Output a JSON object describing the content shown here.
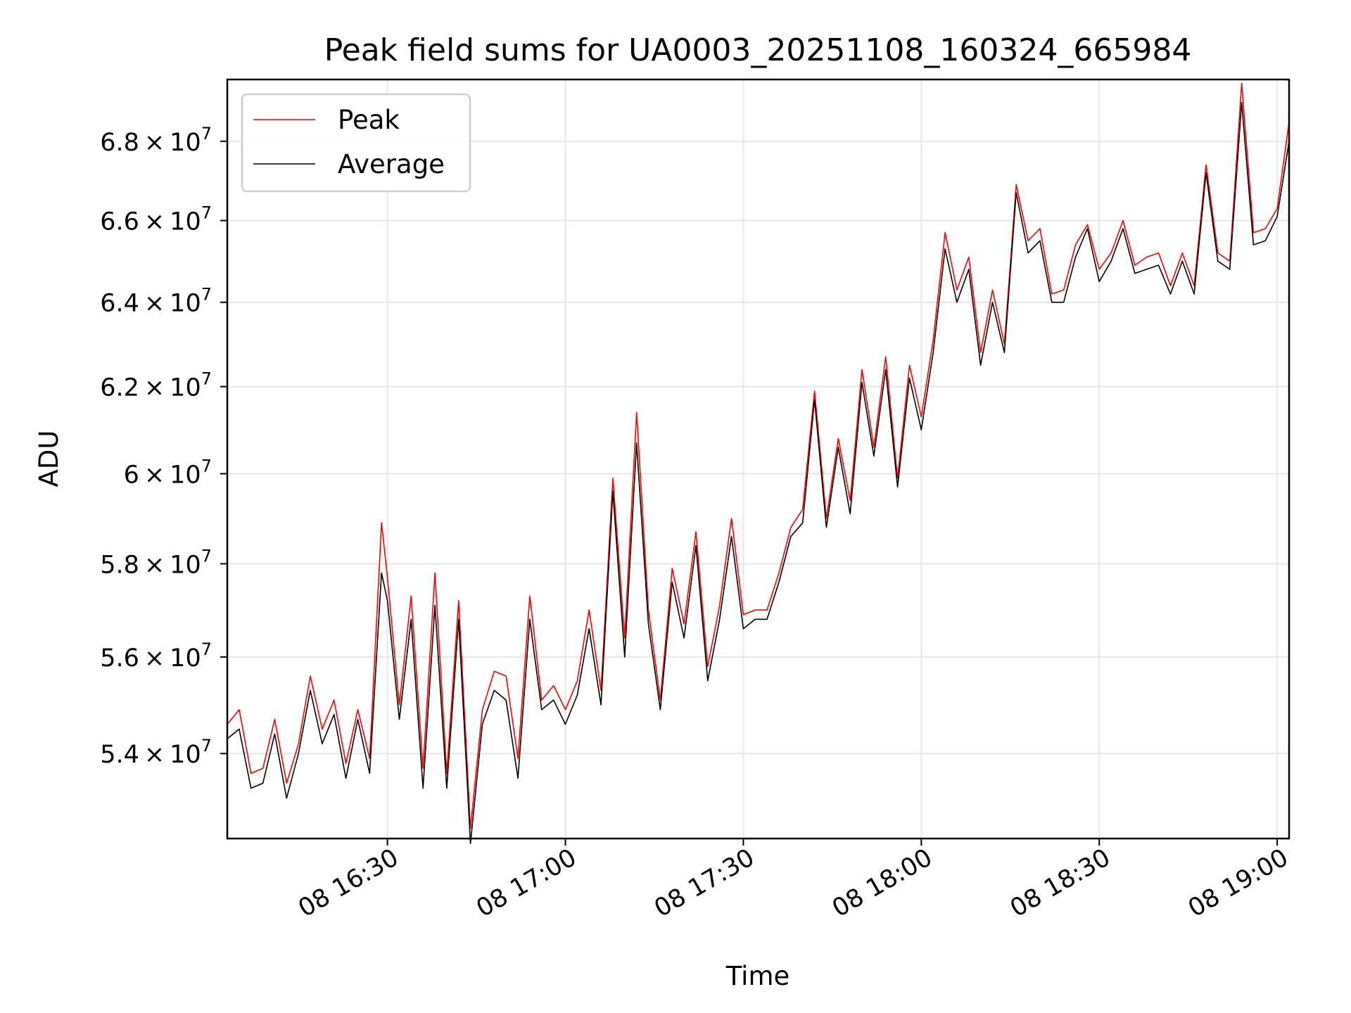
{
  "chart_data": {
    "type": "line",
    "title": "Peak field sums for UA0003_20251108_160324_665984",
    "xlabel": "Time",
    "ylabel": "ADU",
    "xlim": [
      "08 16:03",
      "08 19:02"
    ],
    "ylim": [
      52300000,
      69600000
    ],
    "ylog": true,
    "grid": true,
    "legend_position": "upper left",
    "x_ticks": [
      "08 16:30",
      "08 17:00",
      "08 17:30",
      "08 18:00",
      "08 18:30",
      "08 19:00"
    ],
    "y_ticks": [
      {
        "value": 54000000,
        "mantissa": "5.4",
        "exp": "7"
      },
      {
        "value": 56000000,
        "mantissa": "5.6",
        "exp": "7"
      },
      {
        "value": 58000000,
        "mantissa": "5.8",
        "exp": "7"
      },
      {
        "value": 60000000,
        "mantissa": "6",
        "exp": "7"
      },
      {
        "value": 62000000,
        "mantissa": "6.2",
        "exp": "7"
      },
      {
        "value": 64000000,
        "mantissa": "6.4",
        "exp": "7"
      },
      {
        "value": 66000000,
        "mantissa": "6.6",
        "exp": "7"
      },
      {
        "value": 68000000,
        "mantissa": "6.8",
        "exp": "7"
      }
    ],
    "x": [
      "16:03",
      "16:05",
      "16:07",
      "16:09",
      "16:11",
      "16:13",
      "16:15",
      "16:17",
      "16:19",
      "16:21",
      "16:23",
      "16:25",
      "16:27",
      "16:29",
      "16:30",
      "16:32",
      "16:34",
      "16:36",
      "16:38",
      "16:40",
      "16:42",
      "16:44",
      "16:46",
      "16:48",
      "16:50",
      "16:52",
      "16:54",
      "16:56",
      "16:58",
      "17:00",
      "17:02",
      "17:04",
      "17:06",
      "17:08",
      "17:10",
      "17:12",
      "17:14",
      "17:16",
      "17:18",
      "17:20",
      "17:22",
      "17:24",
      "17:26",
      "17:28",
      "17:30",
      "17:32",
      "17:34",
      "17:36",
      "17:38",
      "17:40",
      "17:42",
      "17:44",
      "17:46",
      "17:48",
      "17:50",
      "17:52",
      "17:54",
      "17:56",
      "17:58",
      "18:00",
      "18:02",
      "18:04",
      "18:06",
      "18:08",
      "18:10",
      "18:12",
      "18:14",
      "18:16",
      "18:18",
      "18:20",
      "18:22",
      "18:24",
      "18:26",
      "18:28",
      "18:30",
      "18:32",
      "18:34",
      "18:36",
      "18:38",
      "18:40",
      "18:42",
      "18:44",
      "18:46",
      "18:48",
      "18:50",
      "18:52",
      "18:54",
      "18:56",
      "18:58",
      "19:00",
      "19:02"
    ],
    "series": [
      {
        "name": "Peak",
        "color": "#ff0000",
        "values": [
          54600000,
          54900000,
          53600000,
          53700000,
          54700000,
          53400000,
          54200000,
          55600000,
          54500000,
          55100000,
          53800000,
          54900000,
          53900000,
          58900000,
          57700000,
          55000000,
          57300000,
          53700000,
          57800000,
          53600000,
          57200000,
          52500000,
          54900000,
          55700000,
          55600000,
          53900000,
          57300000,
          55100000,
          55400000,
          54900000,
          55500000,
          57000000,
          55300000,
          59900000,
          56400000,
          61400000,
          57000000,
          55100000,
          57900000,
          56700000,
          58700000,
          55800000,
          57100000,
          59000000,
          56900000,
          57000000,
          57000000,
          57800000,
          58800000,
          59200000,
          61900000,
          59000000,
          60800000,
          59400000,
          62400000,
          60600000,
          62700000,
          59900000,
          62500000,
          61300000,
          63100000,
          65700000,
          64300000,
          65100000,
          62800000,
          64300000,
          63000000,
          66900000,
          65500000,
          65800000,
          64200000,
          64300000,
          65400000,
          65900000,
          64800000,
          65200000,
          66000000,
          64900000,
          65100000,
          65200000,
          64400000,
          65200000,
          64400000,
          67400000,
          65200000,
          65000000,
          69500000,
          65700000,
          65800000,
          66300000,
          68500000
        ]
      },
      {
        "name": "Average",
        "color": "#000000",
        "values": [
          54300000,
          54500000,
          53300000,
          53400000,
          54400000,
          53100000,
          54000000,
          55300000,
          54200000,
          54800000,
          53500000,
          54700000,
          53600000,
          57800000,
          57200000,
          54700000,
          56800000,
          53300000,
          57100000,
          53300000,
          56800000,
          52200000,
          54600000,
          55300000,
          55100000,
          53500000,
          56800000,
          54900000,
          55100000,
          54600000,
          55200000,
          56600000,
          55000000,
          59600000,
          56000000,
          60700000,
          56700000,
          54900000,
          57600000,
          56400000,
          58400000,
          55500000,
          56800000,
          58600000,
          56600000,
          56800000,
          56800000,
          57600000,
          58600000,
          58900000,
          61700000,
          58800000,
          60600000,
          59100000,
          62100000,
          60400000,
          62400000,
          59700000,
          62200000,
          61000000,
          62800000,
          65300000,
          64000000,
          64800000,
          62500000,
          64000000,
          62800000,
          66700000,
          65200000,
          65500000,
          64000000,
          64000000,
          65100000,
          65800000,
          64500000,
          65000000,
          65800000,
          64700000,
          64800000,
          64900000,
          64200000,
          65000000,
          64200000,
          67200000,
          65000000,
          64800000,
          69000000,
          65400000,
          65500000,
          66100000,
          68000000
        ]
      }
    ]
  }
}
